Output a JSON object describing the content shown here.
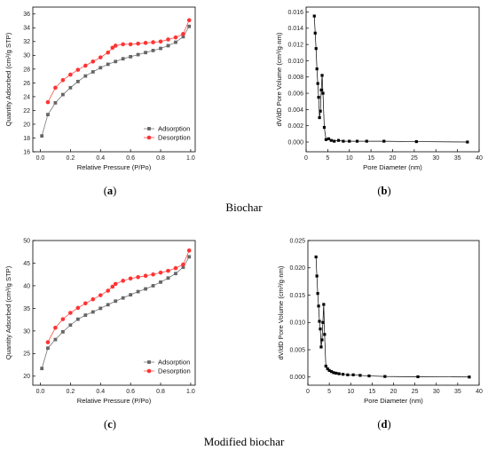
{
  "sections": [
    {
      "label": "Biochar"
    },
    {
      "label": "Modified biochar"
    }
  ],
  "panels": [
    {
      "caption_open": "(",
      "caption_letter": "a",
      "caption_close": ")"
    },
    {
      "caption_open": "(",
      "caption_letter": "b",
      "caption_close": ")"
    },
    {
      "caption_open": "(",
      "caption_letter": "c",
      "caption_close": ")"
    },
    {
      "caption_open": "(",
      "caption_letter": "d",
      "caption_close": ")"
    }
  ],
  "colors": {
    "adsorption": "#666666",
    "desorption": "#ff3333",
    "pore": "#000000",
    "frame": "#000000"
  },
  "chart_data": [
    {
      "type": "line",
      "xlabel": "Relative Pressure (P/Po)",
      "ylabel": "Quantity Adsorbed (cm³/g STP)",
      "xlim": [
        -0.05,
        1.03
      ],
      "ylim": [
        16,
        37
      ],
      "xticks": [
        "0.0",
        "0.2",
        "0.4",
        "0.6",
        "0.8",
        "1.0"
      ],
      "yticks": [
        "16",
        "18",
        "20",
        "22",
        "24",
        "26",
        "28",
        "30",
        "32",
        "34",
        "36"
      ],
      "legend_position": "bottom-right",
      "series": [
        {
          "name": "Adsorption",
          "marker": "square",
          "x": [
            0.01,
            0.05,
            0.1,
            0.15,
            0.2,
            0.25,
            0.3,
            0.35,
            0.4,
            0.45,
            0.5,
            0.55,
            0.6,
            0.65,
            0.7,
            0.75,
            0.8,
            0.85,
            0.9,
            0.95,
            0.99
          ],
          "y": [
            18.3,
            21.4,
            23.1,
            24.3,
            25.3,
            26.2,
            27.0,
            27.6,
            28.2,
            28.7,
            29.1,
            29.5,
            29.8,
            30.1,
            30.4,
            30.7,
            31.0,
            31.4,
            31.9,
            32.7,
            34.2
          ]
        },
        {
          "name": "Desorption",
          "marker": "circle",
          "x": [
            0.99,
            0.95,
            0.9,
            0.85,
            0.8,
            0.75,
            0.7,
            0.65,
            0.6,
            0.55,
            0.5,
            0.48,
            0.45,
            0.4,
            0.35,
            0.3,
            0.25,
            0.2,
            0.15,
            0.1,
            0.05
          ],
          "y": [
            35.1,
            33.1,
            32.6,
            32.3,
            32.0,
            31.9,
            31.8,
            31.7,
            31.6,
            31.6,
            31.4,
            31.1,
            30.4,
            29.7,
            29.1,
            28.5,
            27.9,
            27.2,
            26.4,
            25.3,
            23.2
          ]
        }
      ]
    },
    {
      "type": "line",
      "xlabel": "Pore Diameter (nm)",
      "ylabel": "dV/dD Pore Volume (cm³/g·nm)",
      "xlim": [
        0,
        40
      ],
      "ylim": [
        -0.0012,
        0.0166
      ],
      "xticks": [
        "0",
        "5",
        "10",
        "15",
        "20",
        "25",
        "30",
        "35",
        "40"
      ],
      "yticks": [
        "0.000",
        "0.002",
        "0.004",
        "0.006",
        "0.008",
        "0.010",
        "0.012",
        "0.014",
        "0.016"
      ],
      "series": [
        {
          "marker": "square",
          "x": [
            1.9,
            2.1,
            2.3,
            2.5,
            2.7,
            2.9,
            3.1,
            3.3,
            3.5,
            3.7,
            3.9,
            4.2,
            4.6,
            5.2,
            5.8,
            6.5,
            7.5,
            8.6,
            10.0,
            11.8,
            14.0,
            18.0,
            25.5,
            37.3
          ],
          "y": [
            0.0155,
            0.0134,
            0.0115,
            0.009,
            0.0072,
            0.0055,
            0.003,
            0.0038,
            0.0064,
            0.0082,
            0.006,
            0.0018,
            0.0003,
            0.0004,
            0.0002,
            0.0001,
            0.0002,
            0.0001,
            0.0001,
            0.0001,
            0.0001,
            0.0001,
            5e-05,
            0.0
          ]
        }
      ]
    },
    {
      "type": "line",
      "xlabel": "Relative Pressure (P/Po)",
      "ylabel": "Quantity Adsorbed (cm³/g STP)",
      "xlim": [
        -0.05,
        1.03
      ],
      "ylim": [
        18,
        50
      ],
      "xticks": [
        "0.0",
        "0.2",
        "0.4",
        "0.6",
        "0.8",
        "1.0"
      ],
      "yticks": [
        "20",
        "25",
        "30",
        "35",
        "40",
        "45",
        "50"
      ],
      "legend_position": "bottom-right",
      "series": [
        {
          "name": "Adsorption",
          "marker": "square",
          "x": [
            0.01,
            0.05,
            0.1,
            0.15,
            0.2,
            0.25,
            0.3,
            0.35,
            0.4,
            0.45,
            0.5,
            0.55,
            0.6,
            0.65,
            0.7,
            0.75,
            0.8,
            0.85,
            0.9,
            0.95,
            0.99
          ],
          "y": [
            21.7,
            26.2,
            28.1,
            29.8,
            31.3,
            32.6,
            33.5,
            34.2,
            35.0,
            35.8,
            36.6,
            37.3,
            38.0,
            38.7,
            39.3,
            40.0,
            40.8,
            41.7,
            42.7,
            44.1,
            46.4
          ]
        },
        {
          "name": "Desorption",
          "marker": "circle",
          "x": [
            0.99,
            0.95,
            0.9,
            0.85,
            0.8,
            0.75,
            0.7,
            0.65,
            0.6,
            0.55,
            0.5,
            0.48,
            0.45,
            0.4,
            0.35,
            0.3,
            0.25,
            0.2,
            0.15,
            0.1,
            0.05
          ],
          "y": [
            47.8,
            44.7,
            43.9,
            43.3,
            42.9,
            42.5,
            42.2,
            41.9,
            41.6,
            41.1,
            40.4,
            39.8,
            38.9,
            37.9,
            37.0,
            36.1,
            35.1,
            34.0,
            32.6,
            30.7,
            27.5
          ]
        }
      ]
    },
    {
      "type": "line",
      "xlabel": "Pore Diameter (nm)",
      "ylabel": "dV/dD Pore Volume (cm³/g·nm)",
      "xlim": [
        0,
        40
      ],
      "ylim": [
        -0.0015,
        0.025
      ],
      "xticks": [
        "0",
        "5",
        "10",
        "15",
        "20",
        "25",
        "30",
        "35",
        "40"
      ],
      "yticks": [
        "0.000",
        "0.005",
        "0.010",
        "0.015",
        "0.020",
        "0.025"
      ],
      "series": [
        {
          "marker": "square",
          "x": [
            1.9,
            2.1,
            2.3,
            2.5,
            2.7,
            2.9,
            3.1,
            3.3,
            3.5,
            3.7,
            3.9,
            4.2,
            4.6,
            5.0,
            5.5,
            6.0,
            6.6,
            7.3,
            8.2,
            9.3,
            10.6,
            12.2,
            14.3,
            18.0,
            25.7,
            37.7
          ],
          "y": [
            0.022,
            0.0185,
            0.0153,
            0.013,
            0.0102,
            0.0088,
            0.0055,
            0.0068,
            0.01,
            0.0133,
            0.0078,
            0.002,
            0.0015,
            0.0012,
            0.001,
            0.0008,
            0.0007,
            0.0006,
            0.0005,
            0.0004,
            0.0004,
            0.0003,
            0.0002,
            0.0001,
            5e-05,
            0.0
          ]
        }
      ]
    }
  ]
}
